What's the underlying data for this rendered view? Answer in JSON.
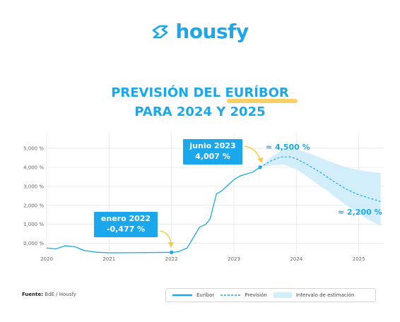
{
  "brand": {
    "name": "housfy",
    "color": "#1aa7ec"
  },
  "title": {
    "line1_pre": "PREVISIÓN DEL ",
    "line1_highlight": "EURÍBOR",
    "line2": "PARA 2024 Y 2025"
  },
  "chart_data": {
    "type": "line",
    "x_ticks": [
      "2020",
      "2021",
      "2022",
      "2023",
      "2024",
      "2025"
    ],
    "y_ticks": [
      "5,000 %",
      "4,000 %",
      "3,000 %",
      "2,000 %",
      "1,000 %",
      "0,000 %"
    ],
    "xlim": [
      2020.0,
      2025.4
    ],
    "ylim": [
      -0.5,
      5.3
    ],
    "grid": true,
    "series": [
      {
        "name": "Euríbor",
        "style": "solid",
        "points": [
          [
            2020.0,
            -0.25
          ],
          [
            2020.15,
            -0.29
          ],
          [
            2020.3,
            -0.13
          ],
          [
            2020.45,
            -0.18
          ],
          [
            2020.6,
            -0.38
          ],
          [
            2020.8,
            -0.47
          ],
          [
            2021.0,
            -0.5
          ],
          [
            2021.5,
            -0.49
          ],
          [
            2021.9,
            -0.48
          ],
          [
            2022.0,
            -0.477
          ],
          [
            2022.1,
            -0.45
          ],
          [
            2022.25,
            -0.25
          ],
          [
            2022.35,
            0.3
          ],
          [
            2022.45,
            0.85
          ],
          [
            2022.55,
            1.0
          ],
          [
            2022.62,
            1.3
          ],
          [
            2022.72,
            2.6
          ],
          [
            2022.8,
            2.75
          ],
          [
            2022.9,
            3.05
          ],
          [
            2023.0,
            3.35
          ],
          [
            2023.1,
            3.55
          ],
          [
            2023.2,
            3.65
          ],
          [
            2023.3,
            3.75
          ],
          [
            2023.42,
            4.007
          ]
        ]
      },
      {
        "name": "Previsión",
        "style": "dashed",
        "points": [
          [
            2023.42,
            4.007
          ],
          [
            2023.6,
            4.35
          ],
          [
            2023.75,
            4.55
          ],
          [
            2023.9,
            4.55
          ],
          [
            2024.0,
            4.45
          ],
          [
            2024.2,
            4.1
          ],
          [
            2024.4,
            3.7
          ],
          [
            2024.6,
            3.25
          ],
          [
            2024.8,
            2.85
          ],
          [
            2025.0,
            2.55
          ],
          [
            2025.2,
            2.35
          ],
          [
            2025.35,
            2.2
          ]
        ]
      }
    ],
    "band": {
      "name": "Intervalo de estimación",
      "upper": [
        [
          2023.42,
          4.007
        ],
        [
          2023.6,
          4.55
        ],
        [
          2023.8,
          4.95
        ],
        [
          2024.0,
          4.95
        ],
        [
          2024.2,
          4.75
        ],
        [
          2024.5,
          4.35
        ],
        [
          2024.8,
          4.0
        ],
        [
          2025.1,
          3.8
        ],
        [
          2025.35,
          3.7
        ]
      ],
      "lower": [
        [
          2023.42,
          4.007
        ],
        [
          2023.6,
          4.1
        ],
        [
          2023.8,
          4.15
        ],
        [
          2024.0,
          3.9
        ],
        [
          2024.2,
          3.45
        ],
        [
          2024.5,
          2.75
        ],
        [
          2024.8,
          2.0
        ],
        [
          2025.1,
          1.35
        ],
        [
          2025.35,
          0.9
        ]
      ]
    },
    "annotations": [
      {
        "line1": "enero 2022",
        "line2": "-0,477 %",
        "box": true
      },
      {
        "line1": "junio 2023",
        "line2": "4,007 %",
        "box": true
      },
      {
        "line1": "≈ 4,500 %",
        "box": false
      },
      {
        "line1": "≈ 2,200 %",
        "box": false
      }
    ],
    "colors": {
      "line": "#1aa7ec",
      "band": "#d2eefb",
      "arrow": "#f8c84a",
      "grid": "#e6e6e6",
      "axis_text": "#666666"
    }
  },
  "footer": {
    "source_label": "Fuente:",
    "source_value": " BdE / Housfy"
  },
  "legend": {
    "items": [
      "Euríbor",
      "Previsión",
      "Intervalo de estimación"
    ]
  }
}
